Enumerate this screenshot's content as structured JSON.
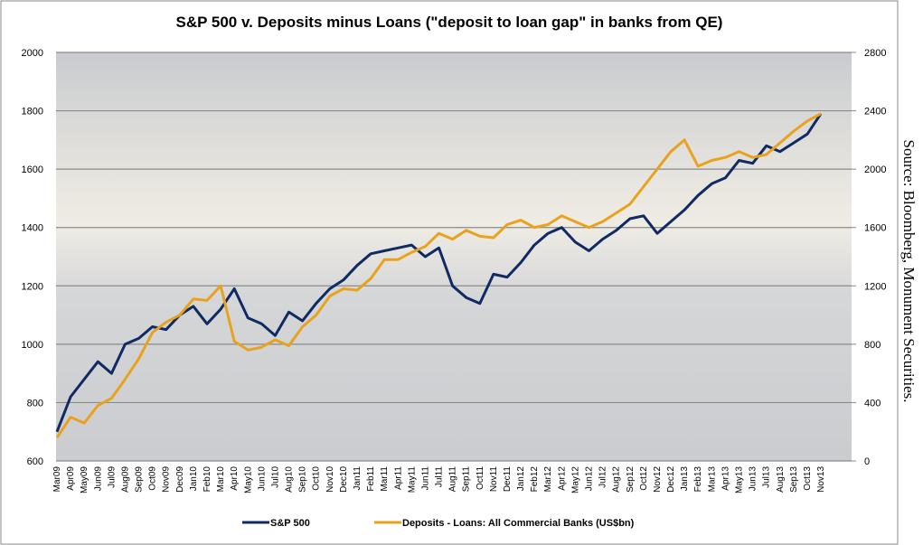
{
  "chart_data": {
    "type": "line",
    "title": "S&P 500 v. Deposits minus Loans (\"deposit to loan gap\" in banks from QE)",
    "source": "Source: Bloomberg, Monument Securities.",
    "categories": [
      "Mar09",
      "Apr09",
      "May09",
      "Jun09",
      "Jul09",
      "Aug09",
      "Sep09",
      "Oct09",
      "Nov09",
      "Dec09",
      "Jan10",
      "Feb10",
      "Mar10",
      "Apr10",
      "May10",
      "Jun10",
      "Jul10",
      "Aug10",
      "Sep10",
      "Oct10",
      "Nov10",
      "Dec10",
      "Jan11",
      "Feb11",
      "Mar11",
      "Apr11",
      "May11",
      "Jun11",
      "Jul11",
      "Aug11",
      "Sep11",
      "Oct11",
      "Nov11",
      "Dec11",
      "Jan12",
      "Feb12",
      "Mar12",
      "Apr12",
      "May12",
      "Jun12",
      "Jul12",
      "Aug12",
      "Sep12",
      "Oct12",
      "Nov12",
      "Dec12",
      "Jan13",
      "Feb13",
      "Mar13",
      "Apr13",
      "May13",
      "Jun13",
      "Jul13",
      "Aug13",
      "Sep13",
      "Oct13",
      "Nov13"
    ],
    "series": [
      {
        "name": "S&P 500",
        "color": "#102a63",
        "values": [
          700,
          820,
          880,
          940,
          900,
          1000,
          1020,
          1060,
          1050,
          1100,
          1130,
          1070,
          1120,
          1190,
          1090,
          1070,
          1030,
          1110,
          1080,
          1140,
          1190,
          1220,
          1270,
          1310,
          1320,
          1330,
          1340,
          1300,
          1330,
          1200,
          1160,
          1140,
          1240,
          1230,
          1280,
          1340,
          1380,
          1400,
          1350,
          1320,
          1360,
          1390,
          1430,
          1440,
          1380,
          1420,
          1460,
          1510,
          1550,
          1570,
          1630,
          1620,
          1680,
          1660,
          1690,
          1720,
          1790
        ]
      },
      {
        "name": "Deposits - Loans: All Commercial Banks (US$bn)",
        "color": "#e8a21e",
        "axis": "y2",
        "values": [
          160,
          300,
          260,
          380,
          430,
          560,
          700,
          880,
          950,
          1000,
          1110,
          1100,
          1200,
          820,
          760,
          780,
          830,
          790,
          920,
          1000,
          1130,
          1180,
          1170,
          1250,
          1380,
          1380,
          1430,
          1470,
          1560,
          1520,
          1580,
          1540,
          1530,
          1620,
          1650,
          1600,
          1620,
          1680,
          1640,
          1600,
          1640,
          1700,
          1760,
          1880,
          2000,
          2120,
          2200,
          2020,
          2060,
          2080,
          2120,
          2080,
          2100,
          2180,
          2260,
          2330,
          2380
        ]
      }
    ],
    "ylim": [
      600,
      2000
    ],
    "yticks": [
      600,
      800,
      1000,
      1200,
      1400,
      1600,
      1800,
      2000
    ],
    "y2lim": [
      0,
      2800
    ],
    "y2ticks": [
      0,
      400,
      800,
      1200,
      1600,
      2000,
      2400,
      2800
    ],
    "grid": true
  }
}
